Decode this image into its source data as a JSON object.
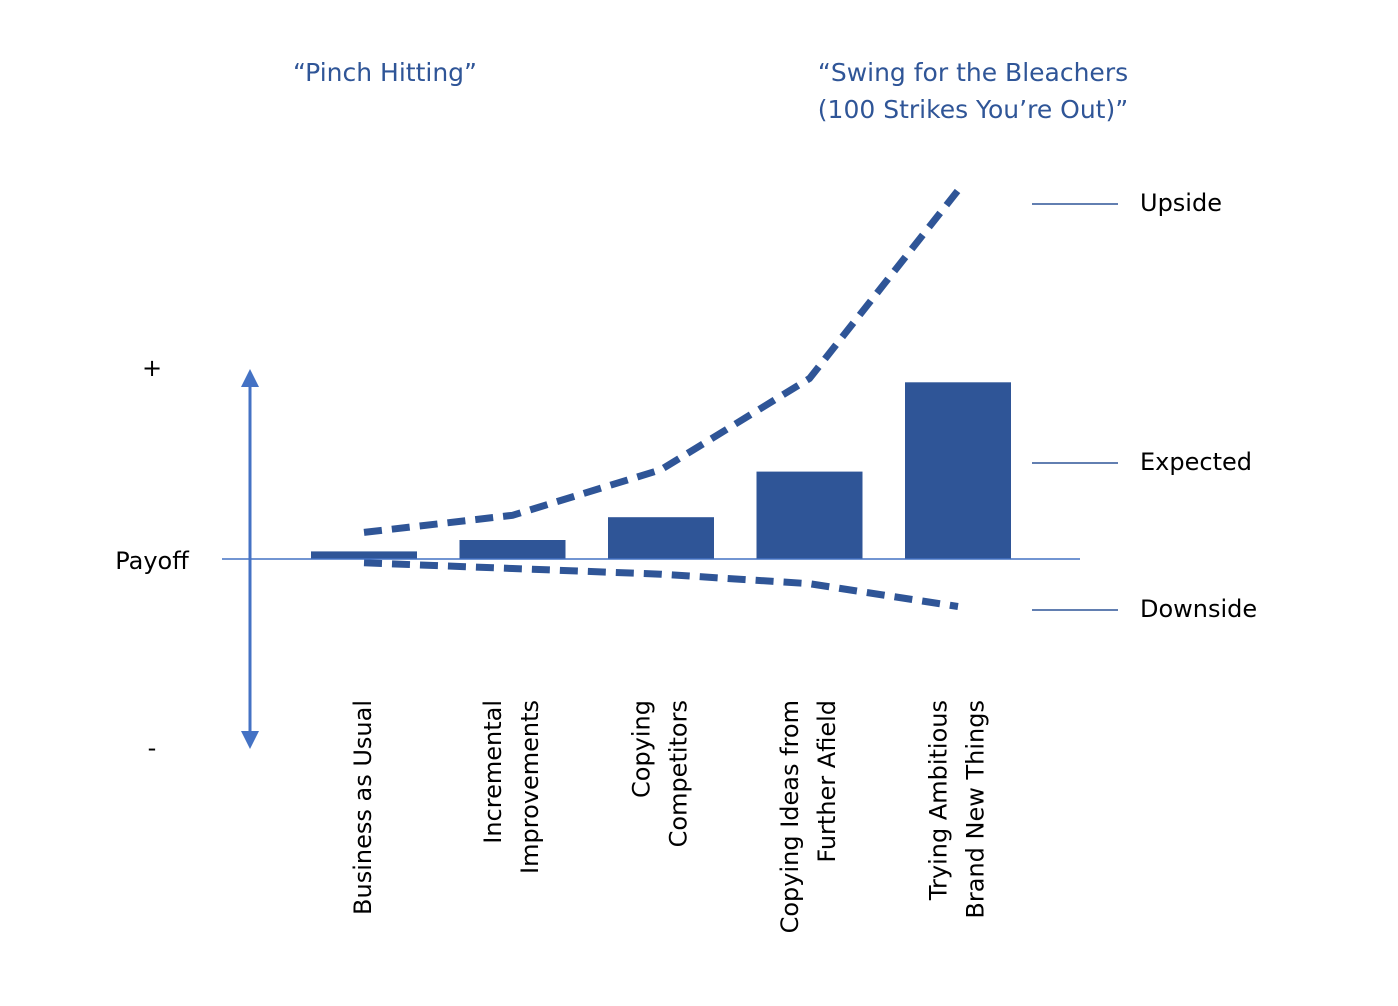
{
  "chart_data": {
    "type": "bar",
    "annotations": [
      [
        "“Pinch Hitting”"
      ],
      [
        "“Swing for the Bleachers",
        "(100 Strikes You’re Out)”"
      ]
    ],
    "y_label": "Payoff",
    "categories": [
      [
        "Business as Usual"
      ],
      [
        "Incremental",
        "Improvements"
      ],
      [
        "Copying",
        "Competitors"
      ],
      [
        "Copying Ideas from",
        "Further Afield"
      ],
      [
        "Trying Ambitious",
        "Brand New Things"
      ]
    ],
    "series": [
      {
        "name": "Upside",
        "type": "line",
        "dashed": true,
        "color": "#2f5597",
        "values": [
          1.4,
          2.3,
          4.7,
          9.5,
          19.4
        ]
      },
      {
        "name": "Expected",
        "type": "bar",
        "color": "#2f5597",
        "values": [
          0.4,
          1.0,
          2.2,
          4.6,
          9.3
        ]
      },
      {
        "name": "Downside",
        "type": "line",
        "dashed": true,
        "color": "#2f5597",
        "values": [
          -0.2,
          -0.5,
          -0.8,
          -1.3,
          -2.5
        ]
      }
    ],
    "ylim": [
      -10,
      10
    ],
    "yticks": [
      {
        "value": 10,
        "label": "+"
      },
      {
        "value": -10,
        "label": "-"
      }
    ],
    "legend": "right",
    "axis_color": "#4472c4"
  }
}
